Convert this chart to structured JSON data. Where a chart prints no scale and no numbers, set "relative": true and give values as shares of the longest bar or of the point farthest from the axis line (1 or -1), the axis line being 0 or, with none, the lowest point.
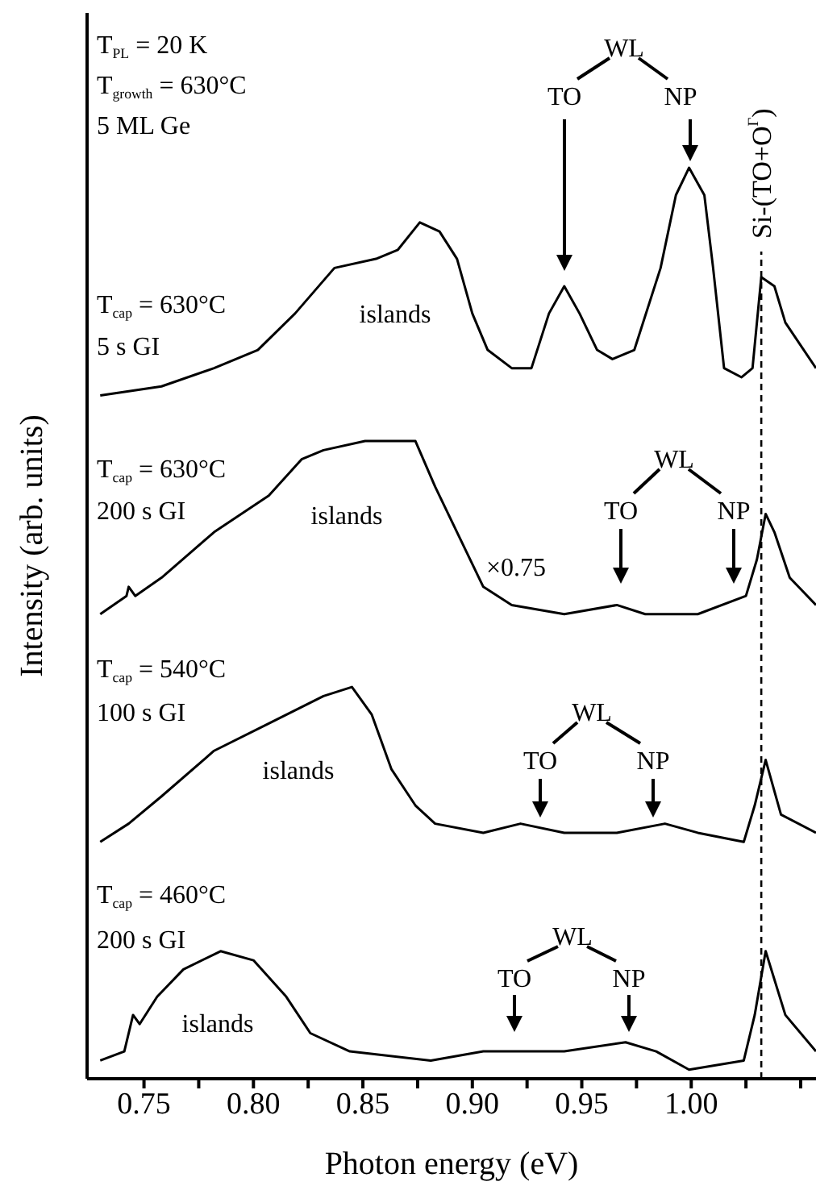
{
  "chart_data": {
    "type": "line",
    "relative": true,
    "xlabel": "Photon energy (eV)",
    "ylabel": "Intensity (arb. units)",
    "xlim": [
      0.724,
      1.057
    ],
    "xticks": [
      0.75,
      {
        "value": 0.775,
        "label": null
      },
      "0.80",
      {
        "value": 0.825,
        "label": null
      },
      0.85,
      {
        "value": 0.875,
        "label": null
      },
      "0.90",
      {
        "value": 0.925,
        "label": null
      },
      0.95,
      {
        "value": 0.975,
        "label": null
      },
      "1.00",
      {
        "value": 1.025,
        "label": null
      },
      {
        "value": 1.05,
        "label": null
      }
    ],
    "series": [
      {
        "color": "#000000",
        "x": [
          0.73,
          0.758,
          0.782,
          0.802,
          0.819,
          0.837,
          0.856,
          0.866,
          0.876,
          0.885,
          0.893,
          0.9,
          0.907,
          0.918,
          0.927,
          0.935,
          0.942,
          0.949,
          0.957,
          0.964,
          0.974,
          0.986,
          0.993,
          0.999,
          1.006,
          1.01,
          1.015,
          1.023,
          1.028,
          1.032,
          1.038,
          1.043,
          1.057
        ],
        "values": [
          0.75,
          0.76,
          0.78,
          0.8,
          0.84,
          0.89,
          0.9,
          0.91,
          0.94,
          0.93,
          0.9,
          0.84,
          0.8,
          0.78,
          0.78,
          0.84,
          0.87,
          0.84,
          0.8,
          0.79,
          0.8,
          0.89,
          0.97,
          1,
          0.97,
          0.89,
          0.78,
          0.77,
          0.78,
          0.88,
          0.87,
          0.83,
          0.78
        ]
      },
      {
        "color": "#000000",
        "x": [
          0.73,
          0.742,
          0.743,
          0.746,
          0.758,
          0.782,
          0.807,
          0.822,
          0.832,
          0.851,
          0.866,
          0.874,
          0.883,
          0.893,
          0.905,
          0.918,
          0.942,
          0.966,
          0.979,
          1.003,
          1.025,
          1.03,
          1.034,
          1.038,
          1.045,
          1.057
        ],
        "values": [
          0.51,
          0.53,
          0.54,
          0.53,
          0.55,
          0.6,
          0.64,
          0.68,
          0.69,
          0.7,
          0.7,
          0.7,
          0.65,
          0.6,
          0.54,
          0.52,
          0.51,
          0.52,
          0.51,
          0.51,
          0.53,
          0.57,
          0.62,
          0.6,
          0.55,
          0.52
        ]
      },
      {
        "color": "#000000",
        "x": [
          0.73,
          0.743,
          0.758,
          0.782,
          0.807,
          0.832,
          0.845,
          0.854,
          0.863,
          0.874,
          0.883,
          0.905,
          0.922,
          0.942,
          0.966,
          0.988,
          1.003,
          1.024,
          1.029,
          1.034,
          1.041,
          1.057
        ],
        "values": [
          0.26,
          0.28,
          0.31,
          0.36,
          0.39,
          0.42,
          0.43,
          0.4,
          0.34,
          0.3,
          0.28,
          0.27,
          0.28,
          0.27,
          0.27,
          0.28,
          0.27,
          0.26,
          0.3,
          0.35,
          0.29,
          0.27
        ]
      },
      {
        "color": "#000000",
        "x": [
          0.73,
          0.741,
          0.745,
          0.748,
          0.756,
          0.768,
          0.785,
          0.8,
          0.815,
          0.826,
          0.844,
          0.881,
          0.905,
          0.92,
          0.942,
          0.97,
          0.984,
          0.999,
          1.024,
          1.029,
          1.034,
          1.043,
          1.057
        ],
        "values": [
          0.02,
          0.03,
          0.07,
          0.06,
          0.09,
          0.12,
          0.14,
          0.13,
          0.09,
          0.05,
          0.03,
          0.02,
          0.03,
          0.03,
          0.03,
          0.04,
          0.03,
          0.01,
          0.02,
          0.07,
          0.14,
          0.07,
          0.03
        ]
      }
    ],
    "ref_lines": [
      {
        "axis": "x",
        "value": 1.032,
        "label": "Si-(TO+O$^{Γ}$)",
        "line_style": "dashed"
      }
    ],
    "annotations": [
      "T$_{PL}$ = 20 K",
      "T$_{growth}$ = 630°C",
      "5 ML Ge",
      "WL",
      "TO",
      "NP",
      "T$_{cap}$ = 630°C",
      "5 s GI",
      "islands",
      "T$_{cap}$ = 630°C",
      "200 s GI",
      "islands",
      "×0.75",
      "WL",
      "TO",
      "NP",
      "T$_{cap}$ = 540°C",
      "100 s GI",
      "islands",
      "WL",
      "TO",
      "NP",
      "T$_{cap}$ = 460°C",
      "200 s GI",
      "islands",
      "WL",
      "TO",
      "NP"
    ]
  }
}
